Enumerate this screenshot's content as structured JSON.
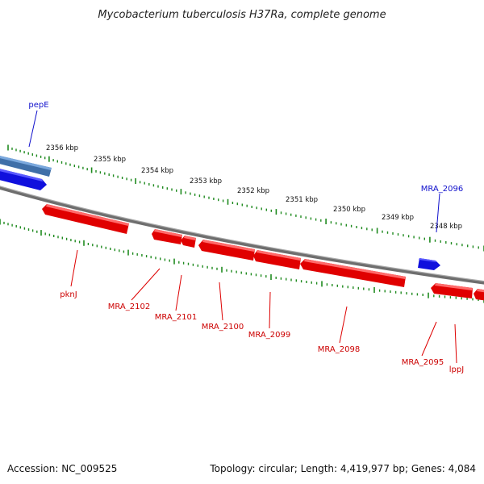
{
  "title": "Mycobacterium tuberculosis H37Ra, complete genome",
  "footer": {
    "accession": "Accession: NC_009525",
    "summary": "Topology: circular; Length: 4,419,977 bp; Genes: 4,084"
  },
  "colors": {
    "forward_gene": "#1a1aff",
    "reverse_gene": "#ff1a1a",
    "selected_gene": "#5a8fd0",
    "tick": "#1f8a1f",
    "backbone": "#808080"
  },
  "kbp_labels": [
    "2356 kbp",
    "2355 kbp",
    "2354 kbp",
    "2353 kbp",
    "2352 kbp",
    "2351 kbp",
    "2350 kbp",
    "2349 kbp",
    "2348 kbp"
  ],
  "gene_labels": [
    {
      "text": "pepE",
      "strand": "forward"
    },
    {
      "text": "MRA_2096",
      "strand": "forward"
    },
    {
      "text": "pknJ",
      "strand": "reverse"
    },
    {
      "text": "MRA_2102",
      "strand": "reverse"
    },
    {
      "text": "MRA_2101",
      "strand": "reverse"
    },
    {
      "text": "MRA_2100",
      "strand": "reverse"
    },
    {
      "text": "MRA_2099",
      "strand": "reverse"
    },
    {
      "text": "MRA_2098",
      "strand": "reverse"
    },
    {
      "text": "MRA_2095",
      "strand": "reverse"
    },
    {
      "text": "lppJ",
      "strand": "reverse"
    }
  ]
}
